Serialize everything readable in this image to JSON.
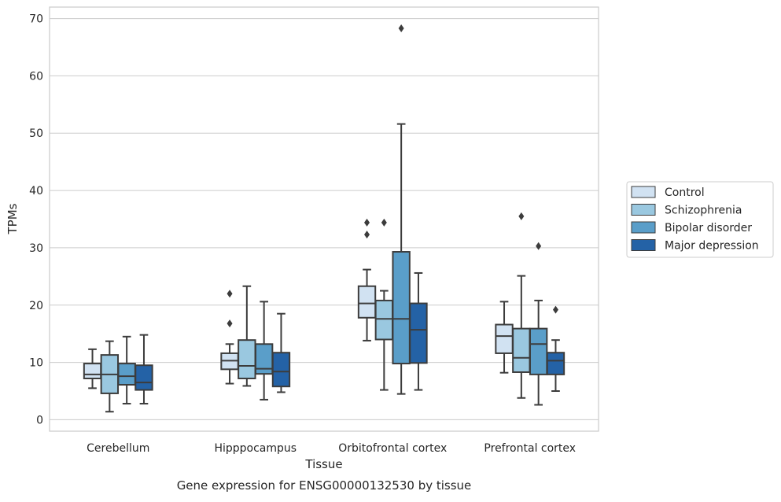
{
  "chart_data": {
    "type": "boxplot",
    "caption": "Gene expression for ENSG00000132530 by tissue",
    "xlabel": "Tissue",
    "ylabel": "TPMs",
    "ylim": [
      -2,
      72
    ],
    "y_ticks": [
      0,
      10,
      20,
      30,
      40,
      50,
      60,
      70
    ],
    "grid": true,
    "legend_placement": "right",
    "categories": [
      "Cerebellum",
      "Hipppocampus",
      "Orbitofrontal cortex",
      "Prefrontal cortex"
    ],
    "series": [
      {
        "name": "Control",
        "color": "#d1e2f2",
        "boxes": [
          {
            "whislo": 5.5,
            "q1": 7.2,
            "med": 7.9,
            "q3": 9.8,
            "whishi": 12.3,
            "fliers": []
          },
          {
            "whislo": 6.3,
            "q1": 8.8,
            "med": 10.3,
            "q3": 11.6,
            "whishi": 13.2,
            "fliers": [
              16.8,
              22.0
            ]
          },
          {
            "whislo": 13.8,
            "q1": 17.8,
            "med": 20.3,
            "q3": 23.3,
            "whishi": 26.2,
            "fliers": [
              32.3,
              34.4
            ]
          },
          {
            "whislo": 8.2,
            "q1": 11.6,
            "med": 14.6,
            "q3": 16.6,
            "whishi": 20.6,
            "fliers": []
          }
        ]
      },
      {
        "name": "Schizophrenia",
        "color": "#9ac8e0",
        "boxes": [
          {
            "whislo": 1.4,
            "q1": 4.6,
            "med": 7.9,
            "q3": 11.3,
            "whishi": 13.7,
            "fliers": []
          },
          {
            "whislo": 5.9,
            "q1": 7.2,
            "med": 9.4,
            "q3": 13.9,
            "whishi": 23.3,
            "fliers": []
          },
          {
            "whislo": 5.2,
            "q1": 14.0,
            "med": 17.6,
            "q3": 20.8,
            "whishi": 22.5,
            "fliers": [
              34.4
            ]
          },
          {
            "whislo": 3.8,
            "q1": 8.3,
            "med": 10.8,
            "q3": 15.9,
            "whishi": 25.1,
            "fliers": [
              35.5
            ]
          }
        ]
      },
      {
        "name": "Bipolar disorder",
        "color": "#5a9ec9",
        "boxes": [
          {
            "whislo": 2.8,
            "q1": 6.1,
            "med": 7.6,
            "q3": 9.8,
            "whishi": 14.5,
            "fliers": []
          },
          {
            "whislo": 3.5,
            "q1": 8.0,
            "med": 8.9,
            "q3": 13.2,
            "whishi": 20.6,
            "fliers": []
          },
          {
            "whislo": 4.5,
            "q1": 9.8,
            "med": 17.6,
            "q3": 29.3,
            "whishi": 51.6,
            "fliers": [
              68.3
            ]
          },
          {
            "whislo": 2.6,
            "q1": 7.9,
            "med": 13.2,
            "q3": 15.9,
            "whishi": 20.8,
            "fliers": [
              30.3
            ]
          }
        ]
      },
      {
        "name": "Major depression",
        "color": "#2462a6",
        "boxes": [
          {
            "whislo": 2.8,
            "q1": 5.2,
            "med": 6.5,
            "q3": 9.5,
            "whishi": 14.8,
            "fliers": []
          },
          {
            "whislo": 4.8,
            "q1": 5.8,
            "med": 8.4,
            "q3": 11.7,
            "whishi": 18.5,
            "fliers": []
          },
          {
            "whislo": 5.2,
            "q1": 9.9,
            "med": 15.7,
            "q3": 20.3,
            "whishi": 25.6,
            "fliers": []
          },
          {
            "whislo": 5.0,
            "q1": 7.9,
            "med": 10.3,
            "q3": 11.7,
            "whishi": 13.9,
            "fliers": [
              19.2
            ]
          }
        ]
      }
    ]
  }
}
